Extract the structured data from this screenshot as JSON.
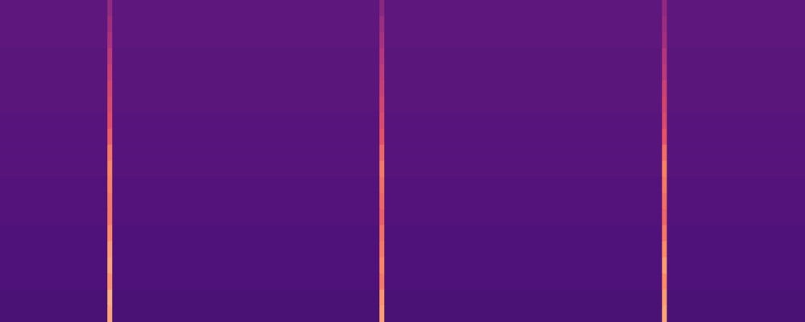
{
  "chart_data": {
    "type": "heatmap",
    "color": "magma",
    "color_range": [
      0,
      1
    ],
    "xlim": [
      0,
      1000
    ],
    "x_bins": [
      0,
      133,
      139,
      471,
      477,
      822,
      828,
      1000
    ],
    "tick_labels": false,
    "grid": false,
    "cells": [
      [
        0.29,
        0.42,
        0.29,
        0.4,
        0.29,
        0.42,
        0.29
      ],
      [
        0.29,
        0.45,
        0.29,
        0.44,
        0.29,
        0.44,
        0.29
      ],
      [
        0.29,
        0.48,
        0.29,
        0.47,
        0.29,
        0.46,
        0.29
      ],
      [
        0.28,
        0.52,
        0.28,
        0.5,
        0.28,
        0.5,
        0.28
      ],
      [
        0.28,
        0.55,
        0.28,
        0.53,
        0.28,
        0.52,
        0.28
      ],
      [
        0.28,
        0.58,
        0.28,
        0.55,
        0.28,
        0.56,
        0.28
      ],
      [
        0.28,
        0.6,
        0.28,
        0.58,
        0.28,
        0.58,
        0.28
      ],
      [
        0.27,
        0.62,
        0.27,
        0.6,
        0.27,
        0.6,
        0.27
      ],
      [
        0.27,
        0.66,
        0.27,
        0.63,
        0.27,
        0.64,
        0.27
      ],
      [
        0.27,
        0.72,
        0.27,
        0.68,
        0.27,
        0.7,
        0.27
      ],
      [
        0.27,
        0.75,
        0.27,
        0.72,
        0.27,
        0.74,
        0.27
      ],
      [
        0.26,
        0.74,
        0.26,
        0.7,
        0.26,
        0.72,
        0.26
      ],
      [
        0.26,
        0.72,
        0.26,
        0.68,
        0.26,
        0.7,
        0.26
      ],
      [
        0.26,
        0.72,
        0.26,
        0.66,
        0.26,
        0.68,
        0.26
      ],
      [
        0.25,
        0.76,
        0.25,
        0.7,
        0.25,
        0.72,
        0.25
      ],
      [
        0.25,
        0.8,
        0.25,
        0.72,
        0.25,
        0.76,
        0.25
      ],
      [
        0.25,
        0.82,
        0.25,
        0.75,
        0.25,
        0.8,
        0.25
      ],
      [
        0.25,
        0.78,
        0.25,
        0.72,
        0.25,
        0.76,
        0.25
      ],
      [
        0.24,
        0.84,
        0.24,
        0.78,
        0.24,
        0.8,
        0.24
      ],
      [
        0.24,
        0.82,
        0.24,
        0.8,
        0.24,
        0.82,
        0.24
      ]
    ]
  }
}
